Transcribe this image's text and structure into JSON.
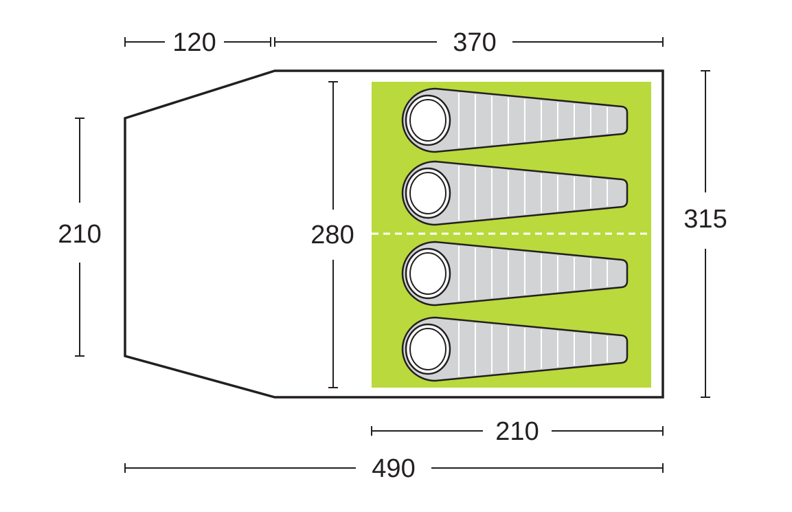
{
  "dimensions": {
    "top_porch": "120",
    "top_inner": "370",
    "left_height": "210",
    "inner_height": "280",
    "right_height": "315",
    "bedroom_width": "210",
    "total_length": "490"
  },
  "colors": {
    "outline": "#231f20",
    "bedroom_fill": "#b9d93c",
    "sleeping_bag": "#d2d3d5",
    "divider": "#ffffff"
  },
  "sleeping_bags": [
    "bag-1",
    "bag-2",
    "bag-3",
    "bag-4"
  ]
}
